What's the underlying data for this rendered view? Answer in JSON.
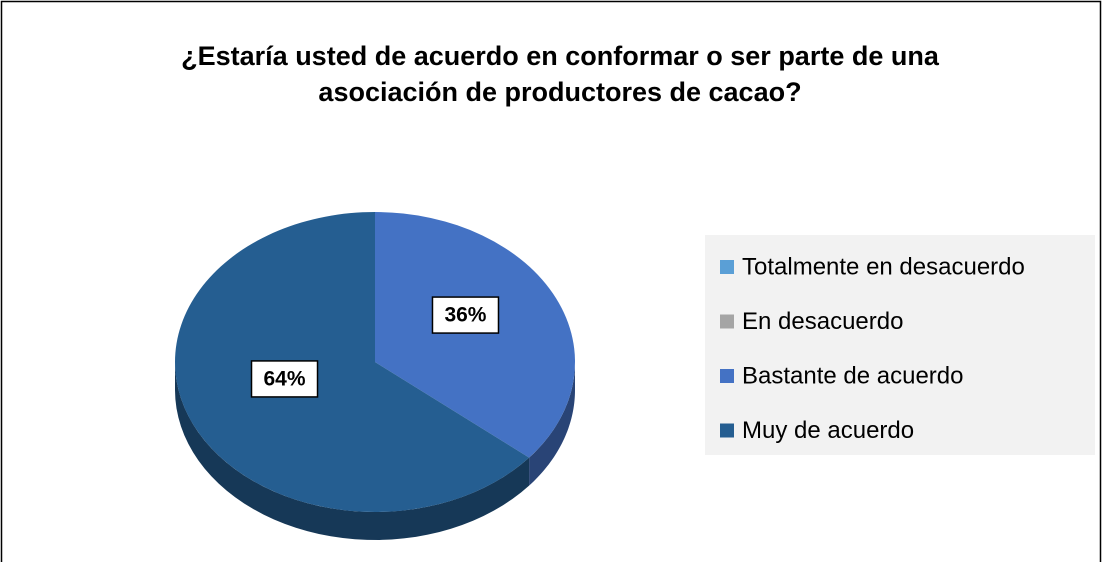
{
  "chart_data": {
    "type": "pie",
    "title": "¿Estaría usted de acuerdo en conformar o ser parte de una asociación de productores de cacao?",
    "categories": [
      "Totalmente en desacuerdo",
      "En desacuerdo",
      "Bastante de acuerdo",
      "Muy de acuerdo"
    ],
    "values": [
      0,
      0,
      36,
      64
    ],
    "value_labels": [
      null,
      null,
      "36%",
      "64%"
    ],
    "colors": [
      "#5a9fd6",
      "#a5a5a5",
      "#4472c4",
      "#255e91"
    ],
    "legend": "right"
  }
}
